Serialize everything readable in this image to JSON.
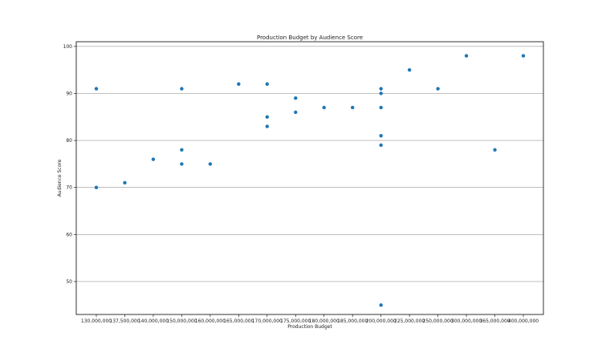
{
  "chart_data": {
    "type": "scatter",
    "title": "Production Budget by Audience Score",
    "xlabel": "Production Budget",
    "ylabel": "Audience Score",
    "categories": [
      "130,000,000",
      "137,500,000",
      "140,000,000",
      "150,000,000",
      "160,000,000",
      "165,000,000",
      "170,000,000",
      "175,000,000",
      "180,000,000",
      "185,000,000",
      "200,000,000",
      "225,000,000",
      "250,000,000",
      "300,000,000",
      "365,000,000",
      "400,000,000"
    ],
    "yticks": [
      50,
      60,
      70,
      80,
      90,
      100
    ],
    "ylim": [
      43,
      101
    ],
    "grid": "horizontal",
    "color": "#1f77b4",
    "points": [
      {
        "x": "130,000,000",
        "y": 91
      },
      {
        "x": "130,000,000",
        "y": 70
      },
      {
        "x": "137,500,000",
        "y": 71
      },
      {
        "x": "140,000,000",
        "y": 76
      },
      {
        "x": "150,000,000",
        "y": 91
      },
      {
        "x": "150,000,000",
        "y": 78
      },
      {
        "x": "150,000,000",
        "y": 75
      },
      {
        "x": "160,000,000",
        "y": 75
      },
      {
        "x": "165,000,000",
        "y": 92
      },
      {
        "x": "170,000,000",
        "y": 92
      },
      {
        "x": "170,000,000",
        "y": 85
      },
      {
        "x": "170,000,000",
        "y": 83
      },
      {
        "x": "175,000,000",
        "y": 89
      },
      {
        "x": "175,000,000",
        "y": 86
      },
      {
        "x": "180,000,000",
        "y": 87
      },
      {
        "x": "185,000,000",
        "y": 87
      },
      {
        "x": "200,000,000",
        "y": 91
      },
      {
        "x": "200,000,000",
        "y": 90
      },
      {
        "x": "200,000,000",
        "y": 87
      },
      {
        "x": "200,000,000",
        "y": 81
      },
      {
        "x": "200,000,000",
        "y": 79
      },
      {
        "x": "200,000,000",
        "y": 45
      },
      {
        "x": "225,000,000",
        "y": 95
      },
      {
        "x": "250,000,000",
        "y": 91
      },
      {
        "x": "300,000,000",
        "y": 98
      },
      {
        "x": "365,000,000",
        "y": 78
      },
      {
        "x": "400,000,000",
        "y": 98
      }
    ]
  }
}
